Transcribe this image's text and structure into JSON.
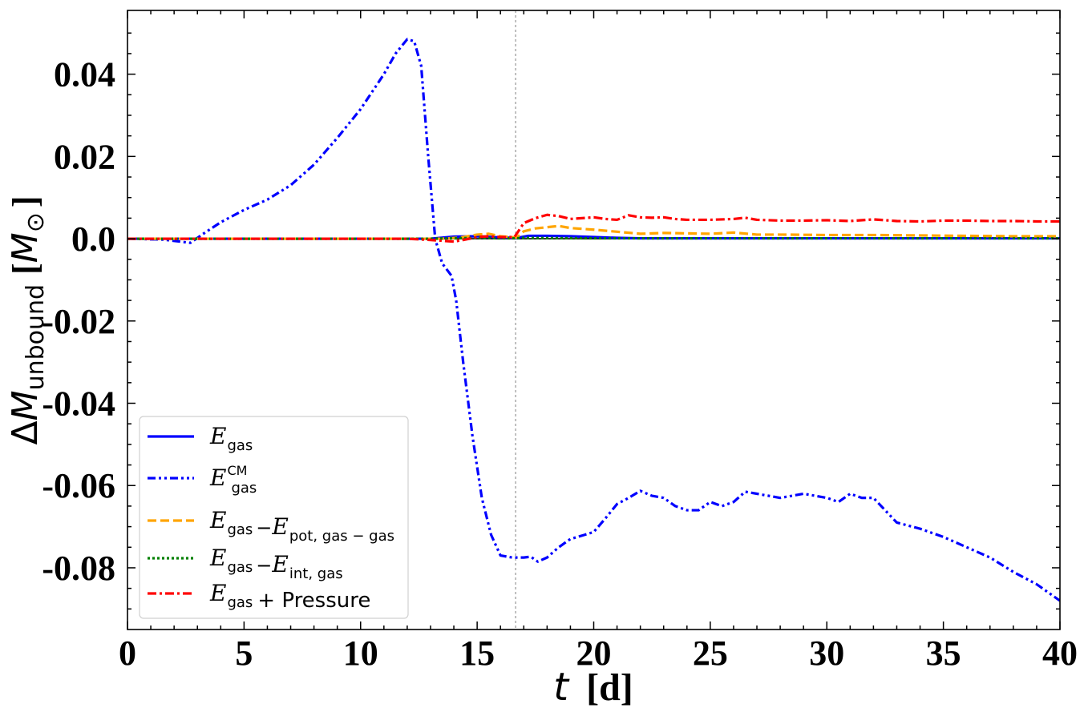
{
  "chart_data": {
    "type": "line",
    "xlabel": {
      "var": "t",
      "unit": "[d]"
    },
    "ylabel": {
      "prefix": "Δ",
      "var": "M",
      "sub": "unbound",
      "unit_open": "[",
      "unit_var": "M",
      "unit_sub": "⊙",
      "unit_close": "]"
    },
    "xlim": [
      0,
      40
    ],
    "ylim": [
      -0.095,
      0.0555
    ],
    "xticks": [
      0,
      5,
      10,
      15,
      20,
      25,
      30,
      35,
      40
    ],
    "xtick_labels": [
      "0",
      "5",
      "10",
      "15",
      "20",
      "25",
      "30",
      "35",
      "40"
    ],
    "yticks": [
      0.04,
      0.02,
      0.0,
      -0.02,
      -0.04,
      -0.06,
      -0.08
    ],
    "ytick_labels": [
      "0.04",
      "0.02",
      "0.0",
      "-0.02",
      "-0.04",
      "-0.06",
      "-0.08"
    ],
    "vline": {
      "x": 16.65,
      "color": "#b0b0b0"
    },
    "hline": {
      "y": 0.0,
      "color": "#000000"
    },
    "legend_position": "bottom-left",
    "series": [
      {
        "name_parts": [
          [
            "E",
            "gas",
            ""
          ]
        ],
        "name_suffix": "",
        "color": "#0000ff",
        "dash": "",
        "width": 3.2,
        "x": [
          0,
          2,
          4,
          6,
          8,
          10,
          12,
          13,
          14,
          15,
          16,
          16.7,
          17.2,
          18,
          19,
          20,
          21,
          22,
          25,
          30,
          35,
          40
        ],
        "y": [
          0,
          0,
          0,
          0,
          0,
          0,
          0,
          0,
          0.0005,
          0.0006,
          0.0003,
          0.0002,
          0.0007,
          0.0007,
          0.0006,
          0.0004,
          0.0002,
          0.0001,
          0.0001,
          0.0001,
          0.0001,
          0.0001
        ]
      },
      {
        "name_parts": [
          [
            "E",
            "gas",
            "CM"
          ]
        ],
        "name_suffix": "",
        "color": "#0000ff",
        "dash": "10,4,3,4,3,4",
        "width": 3.2,
        "x": [
          0,
          1.5,
          2.7,
          3.2,
          4,
          5,
          6,
          7,
          8,
          9,
          10,
          11,
          11.5,
          12,
          12.3,
          12.6,
          12.9,
          13.2,
          13.5,
          13.9,
          14.1,
          14.4,
          14.8,
          15.2,
          15.6,
          16,
          16.5,
          17,
          17.3,
          17.6,
          18,
          18.5,
          19,
          19.6,
          20,
          20.5,
          21,
          21.5,
          22,
          22.5,
          23,
          23.5,
          24,
          24.5,
          25,
          25.5,
          26,
          26.5,
          27,
          28,
          29,
          30,
          30.5,
          31,
          31.5,
          32,
          33,
          34,
          35,
          36,
          37,
          38,
          39,
          40
        ],
        "y": [
          0,
          -0.0002,
          -0.001,
          0.001,
          0.004,
          0.007,
          0.0095,
          0.013,
          0.018,
          0.0245,
          0.0315,
          0.04,
          0.045,
          0.0485,
          0.048,
          0.042,
          0.02,
          0.0,
          -0.006,
          -0.009,
          -0.015,
          -0.03,
          -0.048,
          -0.063,
          -0.072,
          -0.077,
          -0.0775,
          -0.0775,
          -0.0773,
          -0.0785,
          -0.0775,
          -0.075,
          -0.073,
          -0.072,
          -0.0713,
          -0.068,
          -0.0645,
          -0.063,
          -0.0613,
          -0.0625,
          -0.063,
          -0.065,
          -0.066,
          -0.066,
          -0.064,
          -0.065,
          -0.064,
          -0.0615,
          -0.062,
          -0.063,
          -0.062,
          -0.063,
          -0.064,
          -0.062,
          -0.063,
          -0.063,
          -0.069,
          -0.0705,
          -0.0725,
          -0.075,
          -0.0775,
          -0.081,
          -0.084,
          -0.088
        ]
      },
      {
        "name_parts": [
          [
            "E",
            "gas",
            ""
          ],
          [
            "E",
            "pot, gas − gas",
            ""
          ]
        ],
        "name_suffix": "",
        "color": "#ffa500",
        "dash": "11,5",
        "width": 3.2,
        "x": [
          0,
          12,
          13.5,
          14.3,
          15,
          15.5,
          16,
          16.7,
          17,
          17.5,
          18,
          18.5,
          19,
          20,
          21,
          22,
          23,
          24,
          25,
          26,
          27,
          28,
          30,
          32,
          34,
          36,
          38,
          40
        ],
        "y": [
          0,
          0,
          0,
          0.0003,
          0.001,
          0.0012,
          0.0006,
          0.0003,
          0.0018,
          0.0025,
          0.0028,
          0.0031,
          0.0026,
          0.0022,
          0.0017,
          0.0012,
          0.0014,
          0.0013,
          0.0012,
          0.0015,
          0.001,
          0.001,
          0.0009,
          0.0009,
          0.0008,
          0.0007,
          0.0006,
          0.0006
        ]
      },
      {
        "name_parts": [
          [
            "E",
            "gas",
            ""
          ],
          [
            "E",
            "int, gas",
            ""
          ]
        ],
        "name_suffix": "",
        "color": "#008000",
        "dash": "3,3",
        "width": 3.2,
        "x": [
          0,
          10,
          13,
          14,
          15,
          16,
          16.7,
          17,
          20,
          25,
          30,
          35,
          40
        ],
        "y": [
          0,
          0,
          0,
          0.0001,
          0.0002,
          0.0001,
          0.0001,
          0.0002,
          0.0001,
          0.0001,
          0.0001,
          0.0001,
          0.0001
        ]
      },
      {
        "name_parts": [
          [
            "E",
            "gas",
            ""
          ]
        ],
        "name_suffix": "+  Pressure",
        "color": "#ff0000",
        "dash": "11,4,3,4",
        "width": 3.2,
        "x": [
          0,
          12,
          13,
          13.5,
          14,
          14.5,
          15,
          15.5,
          16,
          16.6,
          17,
          17.5,
          18,
          18.5,
          19,
          19.5,
          20,
          20.5,
          21,
          21.5,
          22,
          22.5,
          23,
          23.5,
          24,
          25,
          26,
          26.5,
          27,
          28,
          29,
          30,
          31,
          32,
          33,
          34,
          35,
          36,
          37,
          38,
          39,
          40
        ],
        "y": [
          0,
          0,
          -0.0003,
          -0.0005,
          -0.0007,
          -0.0002,
          0.0004,
          0.0006,
          0.0004,
          0.0004,
          0.0038,
          0.005,
          0.0058,
          0.0055,
          0.0048,
          0.005,
          0.0052,
          0.0048,
          0.0046,
          0.0057,
          0.0052,
          0.0051,
          0.0052,
          0.0048,
          0.0046,
          0.0046,
          0.0048,
          0.0051,
          0.0046,
          0.0044,
          0.0044,
          0.0045,
          0.0043,
          0.0047,
          0.0043,
          0.0042,
          0.0044,
          0.0044,
          0.0043,
          0.0043,
          0.0042,
          0.0042
        ]
      }
    ]
  }
}
